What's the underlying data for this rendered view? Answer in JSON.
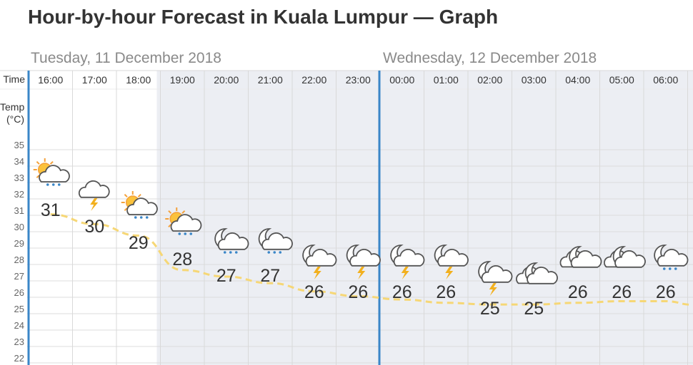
{
  "page": {
    "title": "Hour-by-hour Forecast in Kuala Lumpur — Graph",
    "dates": [
      "Tuesday, 11 December 2018",
      "Wednesday, 12 December 2018"
    ],
    "row_labels": {
      "time": "Time",
      "temp_line1": "Temp",
      "temp_line2": "(°C)"
    }
  },
  "chart_data": {
    "type": "line",
    "title": "Hour-by-hour Forecast in Kuala Lumpur — Graph",
    "ylabel": "Temp (°C)",
    "ylim": [
      22,
      35
    ],
    "y_ticks": [
      22,
      23,
      24,
      25,
      26,
      27,
      28,
      29,
      30,
      31,
      32,
      33,
      34,
      35
    ],
    "x": [
      "16:00",
      "17:00",
      "18:00",
      "19:00",
      "20:00",
      "21:00",
      "22:00",
      "23:00",
      "00:00",
      "01:00",
      "02:00",
      "03:00",
      "04:00",
      "05:00",
      "06:00"
    ],
    "series": [
      {
        "values": [
          31,
          30,
          29,
          28,
          27,
          27,
          26,
          26,
          26,
          26,
          25,
          25,
          26,
          26,
          26
        ]
      }
    ],
    "trend_line": [
      30.8,
      30.2,
      29.5,
      27.4,
      27.0,
      26.6,
      26.1,
      25.8,
      25.6,
      25.4,
      25.3,
      25.3,
      25.4,
      25.5,
      25.5
    ],
    "conditions": [
      "sun-rain",
      "thunder-cloud",
      "sun-rain",
      "sun-rain",
      "moon-rain",
      "moon-rain",
      "moon-thunder",
      "moon-thunder",
      "moon-thunder",
      "moon-thunder",
      "moon-thunder",
      "moon-cloud",
      "moon-cloud",
      "moon-cloud",
      "moon-rain"
    ],
    "night_start_index": 3,
    "grid": true,
    "colors": {
      "night_bg": "#eceef3",
      "trend": "#f6d776",
      "day_divider": "#3a86c8",
      "sun": "#f4a13b",
      "bolt": "#f2b01e",
      "rain": "#3a86c8"
    }
  }
}
